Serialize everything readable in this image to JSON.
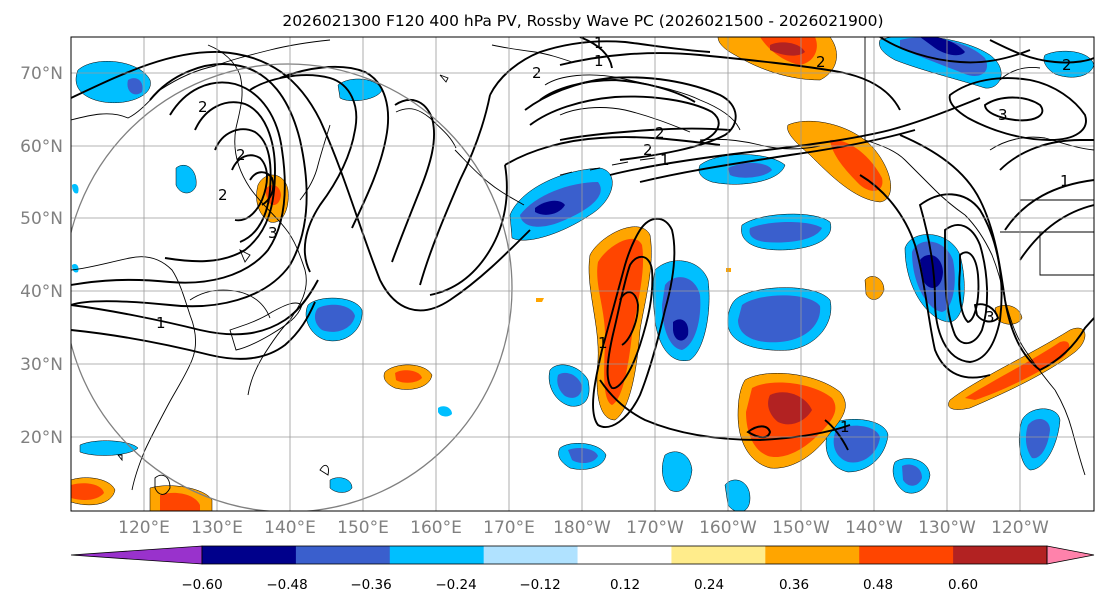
{
  "title": "2026021300 F120 400 hPa PV, Rossby Wave PC (2026021500 - 2026021900)",
  "lat_labels": [
    "70°N",
    "60°N",
    "50°N",
    "40°N",
    "30°N",
    "20°N"
  ],
  "lon_labels": [
    "120°E",
    "130°E",
    "140°E",
    "150°E",
    "160°E",
    "170°E",
    "180°W",
    "170°W",
    "160°W",
    "150°W",
    "140°W",
    "130°W",
    "120°W"
  ],
  "colorbar": {
    "ticks": [
      "−0.60",
      "−0.48",
      "−0.36",
      "−0.24",
      "−0.12",
      "0.12",
      "0.24",
      "0.36",
      "0.48",
      "0.60"
    ],
    "colors": [
      "#9932cc",
      "#00008b",
      "#3a5fcd",
      "#00bfff",
      "#b0e2ff",
      "#ffffff",
      "#ffec8b",
      "#ffa500",
      "#ff4500",
      "#b22222",
      "#ff82ab"
    ]
  },
  "contour_labels": [
    "1",
    "1",
    "1",
    "1",
    "1",
    "1",
    "1",
    "2",
    "2",
    "2",
    "2",
    "2",
    "2",
    "2",
    "2",
    "3",
    "3",
    "3"
  ],
  "map": {
    "projection": "cylindrical",
    "lat_range": [
      10,
      75
    ],
    "lon_range": [
      110,
      250
    ],
    "fields": [
      "400 hPa potential vorticity contours",
      "Rossby wave PC anomaly shading"
    ]
  }
}
